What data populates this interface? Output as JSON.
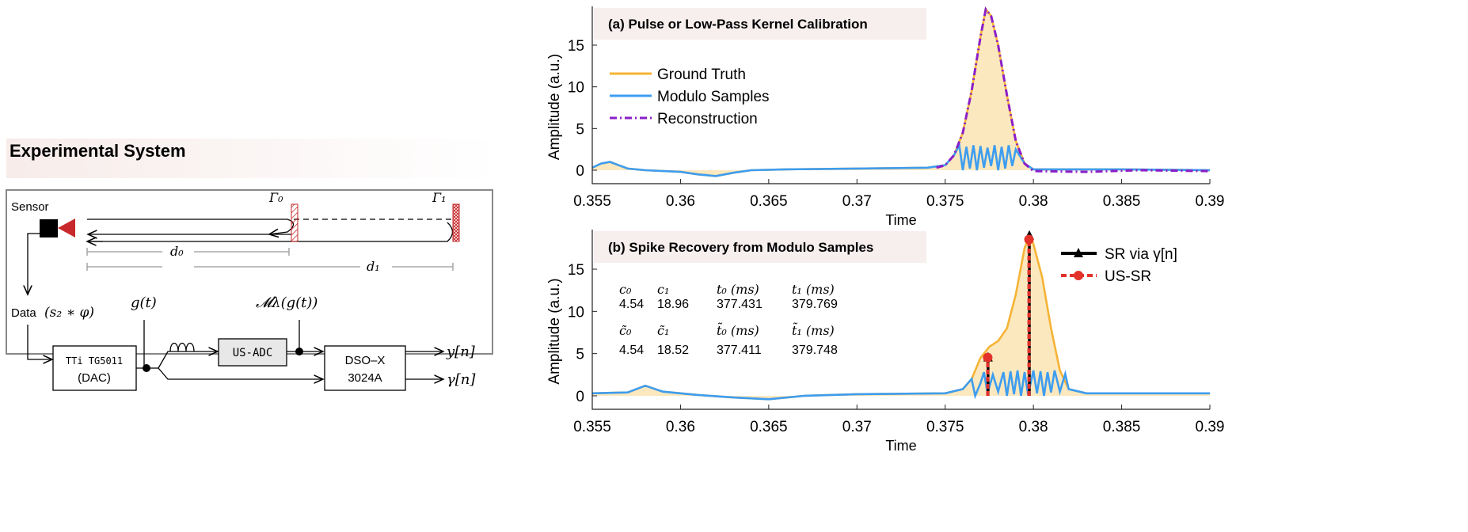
{
  "diagram": {
    "title": "Experimental System",
    "sensor_label": "Sensor",
    "gamma0": "Γ₀",
    "gamma1": "Γ₁",
    "d0": "d₀",
    "d1": "d₁",
    "data_label": "Data",
    "data_expr": "(s₂ ∗ φ)",
    "g_label": "g(t)",
    "m_label": "𝓜λ(g(t))",
    "dac_line1": "TTi TG5011",
    "dac_line2": "(DAC)",
    "adc_label": "US-ADC",
    "dso_line1": "DSO–X",
    "dso_line2": "3024A",
    "out_y": "y[n]",
    "out_gamma": "γ[n]",
    "colors": {
      "reflector": "#c8282a",
      "sensor_triangle": "#c8282a",
      "adc_fill": "#e8e8e8"
    }
  },
  "chart_data": [
    {
      "type": "line",
      "title": "(a) Pulse or Low-Pass Kernel Calibration",
      "xlabel": "Time",
      "ylabel": "Amplitude (a.u.)",
      "xlim": [
        0.355,
        0.39
      ],
      "ylim": [
        -1,
        19.5
      ],
      "xticks": [
        "0.355",
        "0.36",
        "0.365",
        "0.37",
        "0.375",
        "0.38",
        "0.385",
        "0.39"
      ],
      "yticks": [
        "0",
        "5",
        "10",
        "15"
      ],
      "legend": "left",
      "grid": false,
      "series": [
        {
          "name": "Ground Truth",
          "color": "#f5b335",
          "fill": "#fbe6b8",
          "points": [
            [
              0.355,
              0.3
            ],
            [
              0.3555,
              0.8
            ],
            [
              0.356,
              1.0
            ],
            [
              0.3565,
              0.6
            ],
            [
              0.357,
              0.2
            ],
            [
              0.358,
              0.0
            ],
            [
              0.36,
              -0.2
            ],
            [
              0.361,
              -0.5
            ],
            [
              0.362,
              -0.7
            ],
            [
              0.363,
              -0.3
            ],
            [
              0.364,
              0.0
            ],
            [
              0.366,
              0.1
            ],
            [
              0.37,
              0.2
            ],
            [
              0.374,
              0.3
            ],
            [
              0.375,
              0.6
            ],
            [
              0.3755,
              1.8
            ],
            [
              0.376,
              4.5
            ],
            [
              0.3765,
              9.5
            ],
            [
              0.377,
              16
            ],
            [
              0.3773,
              19.3
            ],
            [
              0.3776,
              18.5
            ],
            [
              0.378,
              15
            ],
            [
              0.3785,
              9
            ],
            [
              0.379,
              3.5
            ],
            [
              0.3795,
              0.8
            ],
            [
              0.38,
              0.1
            ],
            [
              0.385,
              0.1
            ],
            [
              0.39,
              0.0
            ]
          ]
        },
        {
          "name": "Modulo Samples",
          "color": "#3d9df0",
          "points": [
            [
              0.355,
              0.3
            ],
            [
              0.3555,
              0.8
            ],
            [
              0.356,
              1.0
            ],
            [
              0.3565,
              0.6
            ],
            [
              0.357,
              0.2
            ],
            [
              0.358,
              0.0
            ],
            [
              0.36,
              -0.2
            ],
            [
              0.361,
              -0.5
            ],
            [
              0.362,
              -0.7
            ],
            [
              0.363,
              -0.3
            ],
            [
              0.364,
              0.0
            ],
            [
              0.366,
              0.1
            ],
            [
              0.37,
              0.2
            ],
            [
              0.374,
              0.3
            ],
            [
              0.375,
              0.6
            ],
            [
              0.3755,
              1.8
            ],
            [
              0.3758,
              3
            ],
            [
              0.376,
              0
            ],
            [
              0.3762,
              2.8
            ],
            [
              0.3764,
              0.2
            ],
            [
              0.3766,
              3
            ],
            [
              0.3768,
              0
            ],
            [
              0.377,
              2.9
            ],
            [
              0.3772,
              0.3
            ],
            [
              0.3774,
              2.7
            ],
            [
              0.3776,
              0.5
            ],
            [
              0.3778,
              3
            ],
            [
              0.378,
              0
            ],
            [
              0.3782,
              2.8
            ],
            [
              0.3784,
              0.2
            ],
            [
              0.3786,
              3
            ],
            [
              0.3788,
              0.5
            ],
            [
              0.379,
              2.5
            ],
            [
              0.3795,
              0.8
            ],
            [
              0.38,
              0.1
            ],
            [
              0.385,
              0.1
            ],
            [
              0.39,
              0.0
            ]
          ]
        },
        {
          "name": "Reconstruction",
          "color": "#8a1fc8",
          "dash": true,
          "points": [
            [
              0.3745,
              0.3
            ],
            [
              0.375,
              0.6
            ],
            [
              0.3755,
              1.8
            ],
            [
              0.376,
              4.5
            ],
            [
              0.3765,
              9.5
            ],
            [
              0.377,
              16
            ],
            [
              0.3773,
              19.3
            ],
            [
              0.3776,
              18.5
            ],
            [
              0.378,
              15
            ],
            [
              0.3785,
              9
            ],
            [
              0.379,
              3.5
            ],
            [
              0.3795,
              0.8
            ],
            [
              0.38,
              -0.1
            ],
            [
              0.383,
              -0.2
            ],
            [
              0.386,
              0.0
            ],
            [
              0.39,
              -0.1
            ]
          ]
        }
      ]
    },
    {
      "type": "line",
      "title": "(b) Spike Recovery from Modulo Samples",
      "xlabel": "Time",
      "ylabel": "Amplitude (a.u.)",
      "xlim": [
        0.355,
        0.39
      ],
      "ylim": [
        -1,
        19.5
      ],
      "xticks": [
        "0.355",
        "0.36",
        "0.365",
        "0.37",
        "0.375",
        "0.38",
        "0.385",
        "0.39"
      ],
      "yticks": [
        "0",
        "5",
        "10",
        "15"
      ],
      "legend": "top-right",
      "grid": false,
      "table": {
        "headers": [
          "c₀",
          "c₁",
          "t₀ (ms)",
          "t₁ (ms)"
        ],
        "values": [
          "4.54",
          "18.96",
          "377.431",
          "379.769"
        ],
        "est_headers": [
          "c̃₀",
          "c̃₁",
          "t̃₀ (ms)",
          "t̃₁ (ms)"
        ],
        "est_values": [
          "4.54",
          "18.52",
          "377.411",
          "379.748"
        ]
      },
      "series": [
        {
          "name": "",
          "color": "#f5b335",
          "fill": "#fbe6b8",
          "points": [
            [
              0.355,
              0.3
            ],
            [
              0.357,
              0.4
            ],
            [
              0.358,
              1.2
            ],
            [
              0.359,
              0.5
            ],
            [
              0.361,
              0.1
            ],
            [
              0.363,
              -0.2
            ],
            [
              0.365,
              -0.4
            ],
            [
              0.367,
              0.0
            ],
            [
              0.37,
              0.2
            ],
            [
              0.375,
              0.3
            ],
            [
              0.376,
              0.8
            ],
            [
              0.3765,
              2
            ],
            [
              0.377,
              4.5
            ],
            [
              0.3775,
              5.8
            ],
            [
              0.378,
              6.5
            ],
            [
              0.3785,
              8
            ],
            [
              0.379,
              12
            ],
            [
              0.3795,
              17.5
            ],
            [
              0.3798,
              18.96
            ],
            [
              0.38,
              18
            ],
            [
              0.3805,
              14
            ],
            [
              0.381,
              8
            ],
            [
              0.3815,
              3
            ],
            [
              0.382,
              0.8
            ],
            [
              0.383,
              0.3
            ],
            [
              0.39,
              0.3
            ]
          ]
        },
        {
          "name": "",
          "color": "#3d9df0",
          "points": [
            [
              0.355,
              0.3
            ],
            [
              0.357,
              0.4
            ],
            [
              0.358,
              1.2
            ],
            [
              0.359,
              0.5
            ],
            [
              0.361,
              0.1
            ],
            [
              0.363,
              -0.2
            ],
            [
              0.365,
              -0.4
            ],
            [
              0.367,
              0.0
            ],
            [
              0.37,
              0.2
            ],
            [
              0.375,
              0.3
            ],
            [
              0.376,
              0.8
            ],
            [
              0.3765,
              2
            ],
            [
              0.3767,
              0
            ],
            [
              0.377,
              1.5
            ],
            [
              0.3772,
              2.8
            ],
            [
              0.3774,
              0.3
            ],
            [
              0.3777,
              2.5
            ],
            [
              0.378,
              0.5
            ],
            [
              0.3783,
              2.8
            ],
            [
              0.3785,
              0
            ],
            [
              0.3787,
              2.9
            ],
            [
              0.3789,
              0.2
            ],
            [
              0.3791,
              3
            ],
            [
              0.3793,
              0
            ],
            [
              0.3795,
              2.8
            ],
            [
              0.3797,
              0.1
            ],
            [
              0.38,
              3
            ],
            [
              0.3802,
              0.3
            ],
            [
              0.3804,
              2.9
            ],
            [
              0.3806,
              0
            ],
            [
              0.3808,
              2.8
            ],
            [
              0.381,
              0.4
            ],
            [
              0.3812,
              3
            ],
            [
              0.3815,
              0.5
            ],
            [
              0.3818,
              2.6
            ],
            [
              0.382,
              0.8
            ],
            [
              0.383,
              0.3
            ],
            [
              0.39,
              0.3
            ]
          ]
        },
        {
          "name": "SR via γ[n]",
          "color": "#000000",
          "marker": "triangle",
          "stems": [
            [
              0.37743,
              4.54
            ],
            [
              0.37977,
              18.96
            ]
          ]
        },
        {
          "name": "US-SR",
          "color": "#e2322a",
          "marker": "circle",
          "dash": true,
          "stems": [
            [
              0.377411,
              4.54
            ],
            [
              0.379748,
              18.52
            ]
          ]
        }
      ]
    }
  ]
}
